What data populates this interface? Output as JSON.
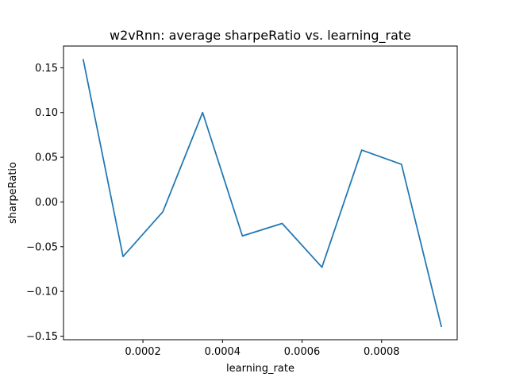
{
  "chart_data": {
    "type": "line",
    "title": "w2vRnn: average sharpeRatio vs. learning_rate",
    "xlabel": "learning_rate",
    "ylabel": "sharpeRatio",
    "xlim": [
      3e-07,
      0.00099
    ],
    "ylim": [
      -0.154,
      0.1743
    ],
    "grid": false,
    "x_ticks": [
      0.0002,
      0.0004,
      0.0006,
      0.0008
    ],
    "x_tick_labels": [
      "0.0002",
      "0.0004",
      "0.0006",
      "0.0008"
    ],
    "y_ticks": [
      -0.15,
      -0.1,
      -0.05,
      0.0,
      0.05,
      0.1,
      0.15
    ],
    "y_tick_labels": [
      "−0.15",
      "−0.10",
      "−0.05",
      "0.00",
      "0.05",
      "0.10",
      "0.15"
    ],
    "series": [
      {
        "color": "#1f77b4",
        "x": [
          5e-05,
          0.00015,
          0.00025,
          0.00035,
          0.00045,
          0.00055,
          0.00065,
          0.00075,
          0.00085,
          0.00095
        ],
        "y": [
          0.159,
          -0.061,
          -0.011,
          0.1,
          -0.038,
          -0.024,
          -0.073,
          0.058,
          0.042,
          -0.139
        ]
      }
    ]
  }
}
